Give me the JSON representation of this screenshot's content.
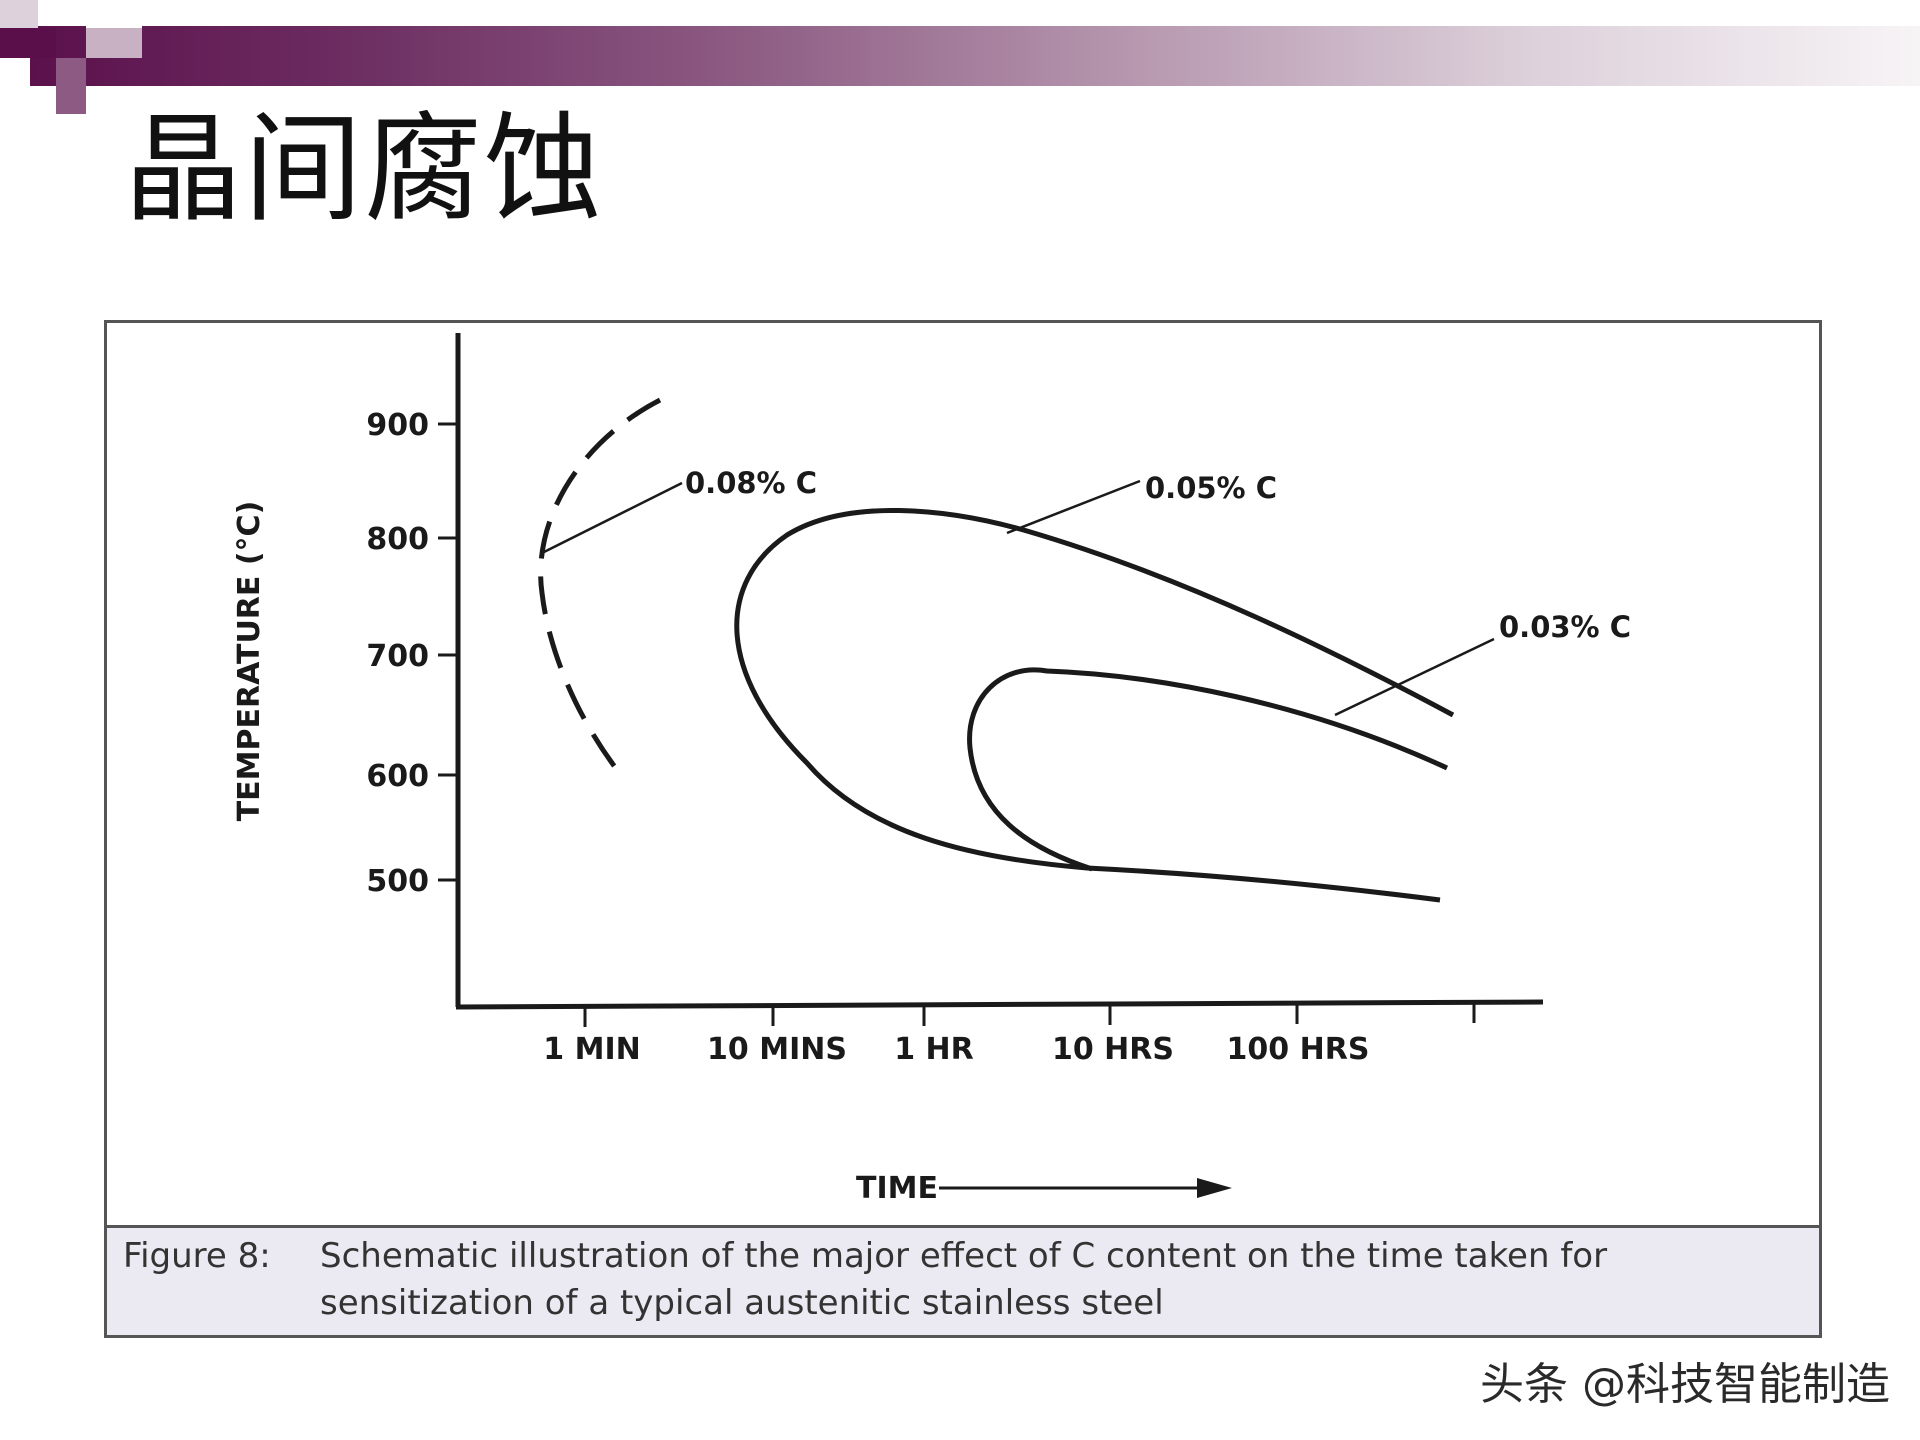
{
  "slide": {
    "title": "晶间腐蚀",
    "watermark": "头条 @科技智能制造"
  },
  "colors": {
    "band_dark": "#5a0e4a",
    "band_light": "#f7f4f6",
    "caption_bg": "#ebeaf2",
    "frame": "#555555"
  },
  "figure": {
    "caption_label": "Figure 8:",
    "caption_line1": "Schematic illustration of the major effect of C content on the time taken for",
    "caption_line2": "sensitization of a typical austenitic stainless steel"
  },
  "chart_data": {
    "type": "line",
    "title": "",
    "ylabel": "TEMPERATURE (°C)",
    "xlabel": "TIME",
    "x_scale": "log",
    "y_ticks": [
      900,
      800,
      700,
      600,
      500
    ],
    "x_ticks": [
      "1 MIN",
      "10 MINS",
      "1 HR",
      "10 HRS",
      "100 HRS"
    ],
    "grid": false,
    "legend": "none",
    "series": [
      {
        "name": "0.08% C",
        "style": "dashed",
        "points": [
          {
            "x": "2 MINS",
            "y": 920
          },
          {
            "x": "1 MIN",
            "y": 840
          },
          {
            "x": "1 MIN",
            "y": 780
          },
          {
            "x": "1.1 MIN",
            "y": 720
          },
          {
            "x": "1.5 MIN",
            "y": 665
          }
        ]
      },
      {
        "name": "0.05% C",
        "style": "solid",
        "points": [
          {
            "x": "40 HRS",
            "y": 490
          },
          {
            "x": "10 HRS",
            "y": 505
          },
          {
            "x": "1 HR",
            "y": 550
          },
          {
            "x": "10 MINS",
            "y": 680
          },
          {
            "x": "1 HR",
            "y": 790
          },
          {
            "x": "10 HRS",
            "y": 750
          },
          {
            "x": "100 HRS",
            "y": 680
          },
          {
            "x": "350 HRS",
            "y": 645
          }
        ]
      },
      {
        "name": "0.03% C",
        "style": "solid",
        "points": [
          {
            "x": "10 HRS",
            "y": 505
          },
          {
            "x": "5 HRS",
            "y": 540
          },
          {
            "x": "5 HRS",
            "y": 610
          },
          {
            "x": "10 HRS",
            "y": 685
          },
          {
            "x": "100 HRS",
            "y": 660
          },
          {
            "x": "350 HRS",
            "y": 605
          }
        ]
      }
    ]
  }
}
